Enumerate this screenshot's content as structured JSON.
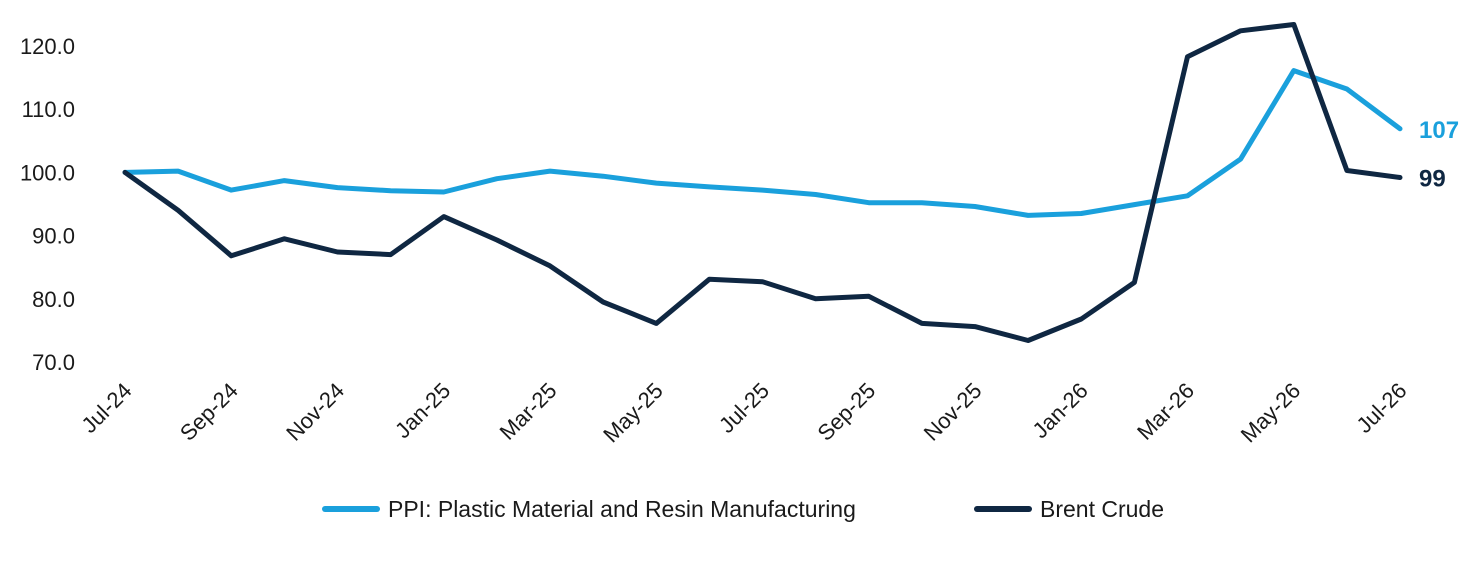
{
  "chart_data": {
    "type": "line",
    "title": "",
    "xlabel": "",
    "ylabel": "",
    "ylim": [
      70,
      120
    ],
    "yticks": [
      "120.0",
      "110.0",
      "100.0",
      "90.0",
      "80.0",
      "70.0"
    ],
    "x_tick_labels": [
      "Jul-24",
      "Sep-24",
      "Nov-24",
      "Jan-25",
      "Mar-25",
      "May-25",
      "Jul-25",
      "Sep-25",
      "Nov-25",
      "Jan-26",
      "Mar-26",
      "May-26",
      "Jul-26"
    ],
    "x": [
      "Jul-24",
      "Aug-24",
      "Sep-24",
      "Oct-24",
      "Nov-24",
      "Dec-24",
      "Jan-25",
      "Feb-25",
      "Mar-25",
      "Apr-25",
      "May-25",
      "Jun-25",
      "Jul-25",
      "Aug-25",
      "Sep-25",
      "Oct-25",
      "Nov-25",
      "Dec-25",
      "Jan-26",
      "Feb-26",
      "Mar-26",
      "Apr-26",
      "May-26",
      "Jun-26",
      "Jul-26"
    ],
    "grid": false,
    "legend_position": "bottom",
    "series": [
      {
        "name": "PPI: Plastic Material and Resin Manufacturing",
        "color": "#1aa0dc",
        "end_label": "107",
        "values": [
          100.0,
          100.2,
          97.2,
          98.7,
          97.6,
          97.1,
          96.9,
          99.0,
          100.2,
          99.4,
          98.3,
          97.7,
          97.2,
          96.5,
          95.2,
          95.2,
          94.6,
          93.2,
          93.5,
          94.9,
          96.3,
          102.1,
          116.1,
          113.2,
          106.9
        ]
      },
      {
        "name": "Brent Crude",
        "color": "#0f2742",
        "end_label": "99",
        "values": [
          100.0,
          94.0,
          86.8,
          89.5,
          87.4,
          87.0,
          93.0,
          89.3,
          85.2,
          79.5,
          76.1,
          83.1,
          82.7,
          80.0,
          80.4,
          76.1,
          75.6,
          73.4,
          76.8,
          82.6,
          118.3,
          122.4,
          123.4,
          100.3,
          99.2
        ]
      }
    ]
  }
}
